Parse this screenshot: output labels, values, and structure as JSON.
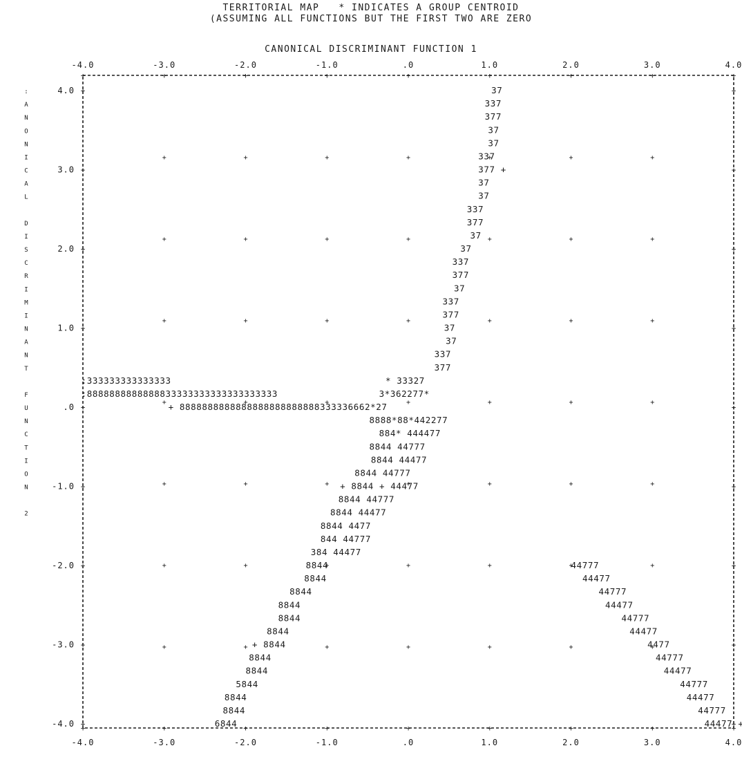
{
  "title_line1": "TERRITORIAL MAP   * INDICATES A GROUP CENTROID",
  "title_line2": "(ASSUMING ALL FUNCTIONS BUT THE FIRST TWO ARE ZERO",
  "colors": {
    "ink": "#1a1a1a",
    "background": "#ffffff"
  },
  "chart_data": {
    "type": "table",
    "title": "TERRITORIAL MAP   * INDICATES A GROUP CENTROID",
    "subtitle": "(ASSUMING ALL FUNCTIONS BUT THE FIRST TWO ARE ZERO",
    "xlabel": "CANONICAL DISCRIMINANT FUNCTION 1",
    "ylabel": "CANONICAL DISCRIMINANT FUNCTION 2",
    "xlim": [
      -4.0,
      4.0
    ],
    "ylim": [
      -4.0,
      4.0
    ],
    "x_ticks": [
      "-4.0",
      "-3.0",
      "-2.0",
      "-1.0",
      ".0",
      "1.0",
      "2.0",
      "3.0",
      "4.0"
    ],
    "y_ticks": [
      "4.0",
      "3.0",
      "2.0",
      "1.0",
      ".0",
      "-1.0",
      "-2.0",
      "-3.0",
      "-4.0"
    ],
    "grid": "plus markers at integer intersections",
    "boundary_rows": [
      {
        "y": 3.9,
        "x": 1.0,
        "text": "37"
      },
      {
        "y": 3.8,
        "x": 0.95,
        "text": "337"
      },
      {
        "y": 3.7,
        "x": 0.95,
        "text": "377"
      },
      {
        "y": 3.6,
        "x": 0.95,
        "text": "37"
      },
      {
        "y": 3.5,
        "x": 0.95,
        "text": "37"
      },
      {
        "y": 3.4,
        "x": 0.9,
        "text": "337"
      },
      {
        "y": 3.3,
        "x": 0.9,
        "text": "377"
      },
      {
        "y": 3.2,
        "x": 0.9,
        "text": "37"
      },
      {
        "y": 3.1,
        "x": 0.9,
        "text": "37"
      },
      {
        "y": 3.0,
        "x": 0.8,
        "text": "337"
      },
      {
        "y": 2.9,
        "x": 0.8,
        "text": "377"
      },
      {
        "y": 2.8,
        "x": 0.8,
        "text": "37"
      },
      {
        "y": 2.7,
        "x": 0.8,
        "text": "37"
      },
      {
        "y": 2.6,
        "x": 0.7,
        "text": "337"
      },
      {
        "y": 2.5,
        "x": 0.7,
        "text": "377"
      },
      {
        "y": 2.4,
        "x": 0.75,
        "text": "37"
      },
      {
        "y": 2.3,
        "x": 0.6,
        "text": "337"
      },
      {
        "y": 2.2,
        "x": 0.6,
        "text": "377"
      },
      {
        "y": 2.1,
        "x": 0.65,
        "text": "37"
      },
      {
        "y": 2.0,
        "x": 0.65,
        "text": "37"
      },
      {
        "y": 1.9,
        "x": 0.55,
        "text": "337"
      },
      {
        "y": 1.8,
        "x": 0.55,
        "text": "377"
      },
      {
        "y": 1.7,
        "x": 0.5,
        "text": "333333333333333"
      },
      {
        "y": 1.6,
        "x": 0.45,
        "text": "* 33327"
      },
      {
        "y": 1.5,
        "x": 0.4,
        "text": "8888888888888833333333333333333333"
      },
      {
        "y": 1.4,
        "x": 0.35,
        "text": "3*362277*"
      },
      {
        "y": 1.3,
        "x": 0.3,
        "text": "8888888888888888888888888333336662*27"
      },
      {
        "y": 1.2,
        "x": 0.25,
        "text": "8888*88*442277"
      },
      {
        "y": 1.1,
        "x": 0.2,
        "text": "884* 444477"
      },
      {
        "y": 1.0,
        "x": 0.15,
        "text": "8844 44777"
      },
      {
        "y": 0.9,
        "x": 0.1,
        "text": "8844 44477"
      },
      {
        "y": 0.8,
        "x": 0.05,
        "text": "8844 44777"
      }
    ]
  },
  "map": {
    "left_edge_title": "CANONICAL DISCRIMINANT FUNCTION 2",
    "rows": [
      {
        "row": 0,
        "x": 1.02,
        "text": "37"
      },
      {
        "row": 1,
        "x": 0.94,
        "text": "337"
      },
      {
        "row": 2,
        "x": 0.94,
        "text": "377"
      },
      {
        "row": 3,
        "x": 0.98,
        "text": "37"
      },
      {
        "row": 4,
        "x": 0.98,
        "text": "37"
      },
      {
        "row": 5,
        "x": 0.86,
        "text": "337"
      },
      {
        "row": 6,
        "x": 0.86,
        "text": "377 +"
      },
      {
        "row": 7,
        "x": 0.86,
        "text": "37"
      },
      {
        "row": 8,
        "x": 0.86,
        "text": "37"
      },
      {
        "row": 9,
        "x": 0.72,
        "text": "337"
      },
      {
        "row": 10,
        "x": 0.72,
        "text": "377"
      },
      {
        "row": 11,
        "x": 0.76,
        "text": "37"
      },
      {
        "row": 12,
        "x": 0.64,
        "text": "37"
      },
      {
        "row": 13,
        "x": 0.54,
        "text": "337"
      },
      {
        "row": 14,
        "x": 0.54,
        "text": "377"
      },
      {
        "row": 15,
        "x": 0.56,
        "text": "37"
      },
      {
        "row": 16,
        "x": 0.42,
        "text": "337"
      },
      {
        "row": 17,
        "x": 0.42,
        "text": "377"
      },
      {
        "row": 18,
        "x": 0.44,
        "text": "37"
      },
      {
        "row": 19,
        "x": 0.46,
        "text": "37"
      },
      {
        "row": 20,
        "x": 0.32,
        "text": "337"
      },
      {
        "row": 21,
        "x": 0.32,
        "text": "377"
      },
      {
        "row": 22,
        "x": -4.02,
        "text": ":333333333333333"
      },
      {
        "row": 22,
        "x": -0.28,
        "text": "* 33327"
      },
      {
        "row": 23,
        "x": -4.02,
        "text": ":8888888888888833333333333333333333"
      },
      {
        "row": 23,
        "x": -0.36,
        "text": "3*362277*"
      },
      {
        "row": 24,
        "x": -2.95,
        "text": "+ 8888888888888888888888888333336662*27"
      },
      {
        "row": 25,
        "x": -0.48,
        "text": "8888*88*442277"
      },
      {
        "row": 26,
        "x": -0.36,
        "text": "884* 444477"
      },
      {
        "row": 27,
        "x": -0.48,
        "text": "8844     44777"
      },
      {
        "row": 28,
        "x": -0.46,
        "text": "8844     44477"
      },
      {
        "row": 29,
        "x": -0.66,
        "text": "8844          44777"
      },
      {
        "row": 30,
        "x": -0.84,
        "text": "+ 8844   +       44477"
      },
      {
        "row": 31,
        "x": -0.86,
        "text": "8844          44777"
      },
      {
        "row": 32,
        "x": -0.96,
        "text": "8844              44477"
      },
      {
        "row": 33,
        "x": -1.08,
        "text": "8844              4477"
      },
      {
        "row": 34,
        "x": -1.08,
        "text": "844                 44777"
      },
      {
        "row": 35,
        "x": -1.2,
        "text": "384                    44477"
      },
      {
        "row": 36,
        "x": -1.26,
        "text": "8844"
      },
      {
        "row": 36,
        "x": 2.0,
        "text": "44777"
      },
      {
        "row": 37,
        "x": -1.28,
        "text": "8844"
      },
      {
        "row": 37,
        "x": 2.14,
        "text": "44477"
      },
      {
        "row": 38,
        "x": -1.46,
        "text": "8844"
      },
      {
        "row": 38,
        "x": 2.34,
        "text": "44777"
      },
      {
        "row": 39,
        "x": -1.6,
        "text": "8844"
      },
      {
        "row": 39,
        "x": 2.42,
        "text": "44477"
      },
      {
        "row": 40,
        "x": -1.6,
        "text": "8844"
      },
      {
        "row": 40,
        "x": 2.62,
        "text": "44777"
      },
      {
        "row": 41,
        "x": -1.74,
        "text": "8844"
      },
      {
        "row": 41,
        "x": 2.72,
        "text": "44477"
      },
      {
        "row": 42,
        "x": -1.92,
        "text": "+ 8844"
      },
      {
        "row": 42,
        "x": 2.94,
        "text": "4477"
      },
      {
        "row": 43,
        "x": -1.96,
        "text": "8844"
      },
      {
        "row": 43,
        "x": 3.04,
        "text": "44777"
      },
      {
        "row": 44,
        "x": -2.0,
        "text": "8844"
      },
      {
        "row": 44,
        "x": 3.14,
        "text": "44477"
      },
      {
        "row": 45,
        "x": -2.12,
        "text": "5844"
      },
      {
        "row": 45,
        "x": 3.34,
        "text": "44777"
      },
      {
        "row": 46,
        "x": -2.26,
        "text": "8844"
      },
      {
        "row": 46,
        "x": 3.42,
        "text": "44477"
      },
      {
        "row": 47,
        "x": -2.28,
        "text": "8844"
      },
      {
        "row": 47,
        "x": 3.56,
        "text": "44777"
      },
      {
        "row": 48,
        "x": -2.38,
        "text": "6844"
      },
      {
        "row": 48,
        "x": 3.64,
        "text": "44477 +"
      }
    ],
    "left_margin_letters": [
      {
        "row": 0,
        "text": ":"
      },
      {
        "row": 1,
        "text": "A"
      },
      {
        "row": 2,
        "text": "N"
      },
      {
        "row": 3,
        "text": "O"
      },
      {
        "row": 4,
        "text": "N"
      },
      {
        "row": 5,
        "text": "I"
      },
      {
        "row": 6,
        "text": "C"
      },
      {
        "row": 7,
        "text": "A"
      },
      {
        "row": 8,
        "text": "L"
      },
      {
        "row": 10,
        "text": "D"
      },
      {
        "row": 11,
        "text": "I"
      },
      {
        "row": 12,
        "text": "S"
      },
      {
        "row": 13,
        "text": "C"
      },
      {
        "row": 14,
        "text": "R"
      },
      {
        "row": 15,
        "text": "I"
      },
      {
        "row": 16,
        "text": "M"
      },
      {
        "row": 17,
        "text": "I"
      },
      {
        "row": 18,
        "text": "N"
      },
      {
        "row": 19,
        "text": "A"
      },
      {
        "row": 20,
        "text": "N"
      },
      {
        "row": 21,
        "text": "T"
      },
      {
        "row": 23,
        "text": "F"
      },
      {
        "row": 24,
        "text": "U"
      },
      {
        "row": 25,
        "text": "N"
      },
      {
        "row": 26,
        "text": "C"
      },
      {
        "row": 27,
        "text": "T"
      },
      {
        "row": 28,
        "text": "I"
      },
      {
        "row": 29,
        "text": "O"
      },
      {
        "row": 30,
        "text": "N"
      },
      {
        "row": 32,
        "text": "2"
      }
    ],
    "y_tick_rows": [
      {
        "row": 0,
        "label": "4.0"
      },
      {
        "row": 6,
        "label": "3.0"
      },
      {
        "row": 12,
        "label": "2.0"
      },
      {
        "row": 18,
        "label": "1.0"
      },
      {
        "row": 24,
        "label": ".0"
      },
      {
        "row": 30,
        "label": "-1.0"
      },
      {
        "row": 36,
        "label": "-2.0"
      },
      {
        "row": 42,
        "label": "-3.0"
      },
      {
        "row": 48,
        "label": "-4.0"
      }
    ]
  }
}
